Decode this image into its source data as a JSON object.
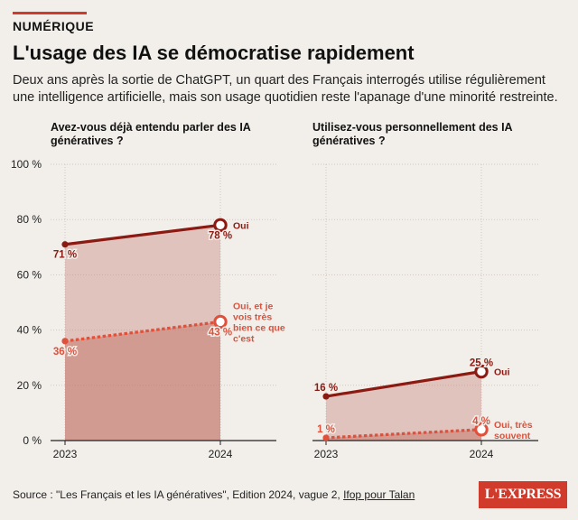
{
  "header": {
    "kicker": "NUMÉRIQUE",
    "title": "L'usage des IA se démocratise rapidement",
    "subtitle": "Deux ans après la sortie de ChatGPT, un quart des Français interrogés utilise régulièrement une intelligence artificielle, mais son usage quotidien reste l'apanage d'une minorité restreinte."
  },
  "colors": {
    "background": "#f2efea",
    "dark_series": "#8b1a12",
    "light_series": "#e0503a",
    "accent": "#d13b2c"
  },
  "chart_data": [
    {
      "type": "line",
      "title": "Avez-vous déjà entendu parler des IA génératives ?",
      "categories": [
        "2023",
        "2024"
      ],
      "ylim": [
        0,
        100
      ],
      "yticks": [
        "0 %",
        "20 %",
        "40 %",
        "60 %",
        "80 %",
        "100 %"
      ],
      "y_tick_values": [
        0,
        20,
        40,
        60,
        80,
        100
      ],
      "grid": true,
      "series": [
        {
          "name": "Oui",
          "values": [
            71,
            78
          ],
          "labels": [
            "71 %",
            "78 %"
          ],
          "color": "#8b1a12",
          "style": "solid"
        },
        {
          "name": "Oui, et je vois très bien ce que c'est",
          "values": [
            36,
            43
          ],
          "labels": [
            "36 %",
            "43 %"
          ],
          "color": "#e0503a",
          "style": "dotted"
        }
      ]
    },
    {
      "type": "line",
      "title": "Utilisez-vous personnellement des IA génératives ?",
      "categories": [
        "2023",
        "2024"
      ],
      "ylim": [
        0,
        100
      ],
      "grid": true,
      "series": [
        {
          "name": "Oui",
          "values": [
            16,
            25
          ],
          "labels": [
            "16 %",
            "25 %"
          ],
          "color": "#8b1a12",
          "style": "solid"
        },
        {
          "name": "Oui, très souvent",
          "values": [
            1,
            4
          ],
          "labels": [
            "1 %",
            "4 %"
          ],
          "color": "#e0503a",
          "style": "dotted"
        }
      ]
    }
  ],
  "footer": {
    "source_prefix": "Source : \"Les Français et les IA génératives\", Edition 2024, vague 2, ",
    "source_link": "Ifop pour Talan",
    "logo_text": "L'EXPRESS"
  }
}
